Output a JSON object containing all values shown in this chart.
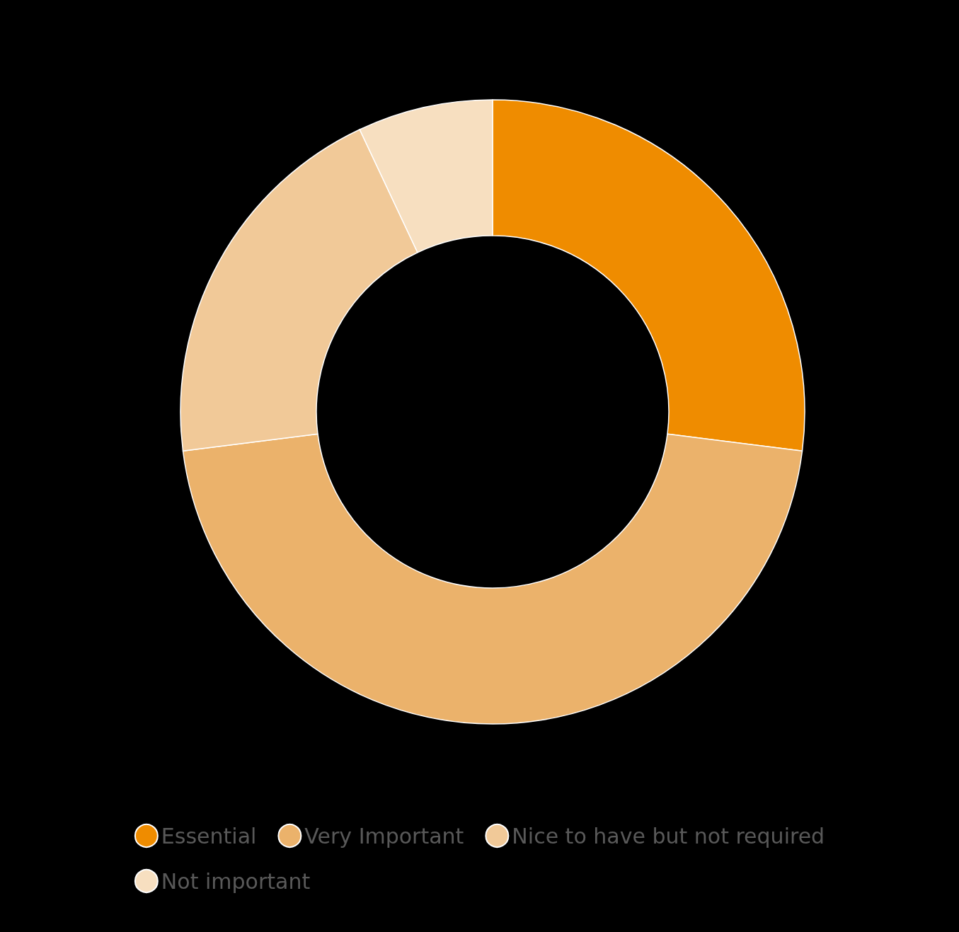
{
  "chart_data": {
    "type": "donut",
    "categories": [
      "Essential",
      "Very Important",
      "Nice to have but not required",
      "Not important"
    ],
    "values": [
      27,
      46,
      20,
      7
    ],
    "colors": [
      "#ef8c00",
      "#ebb26b",
      "#f1c998",
      "#f7dfc0"
    ],
    "legend": "bottom"
  }
}
